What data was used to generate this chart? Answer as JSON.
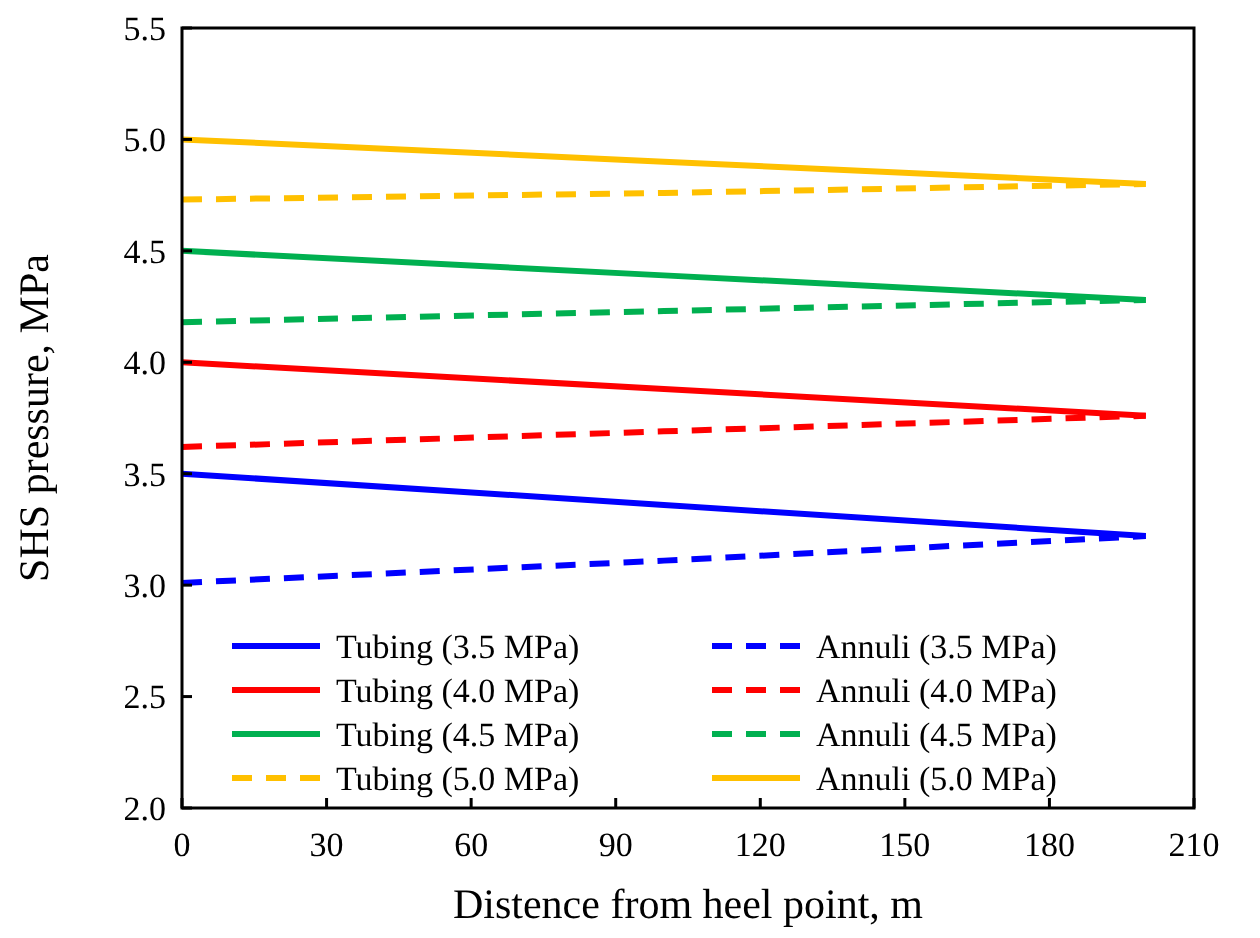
{
  "chart_data": {
    "type": "line",
    "xlabel": "Distence from heel point, m",
    "ylabel": "SHS pressure, MPa",
    "x": [
      0,
      100,
      200
    ],
    "xlim": [
      0,
      210
    ],
    "xticks": [
      0,
      30,
      60,
      90,
      120,
      150,
      180,
      210
    ],
    "ylim": [
      2.0,
      5.5
    ],
    "yticks": [
      {
        "value": 2.0,
        "label": "2.0"
      },
      {
        "value": 2.5,
        "label": "2.5"
      },
      {
        "value": 3.0,
        "label": "3.0"
      },
      {
        "value": 3.5,
        "label": "3.5"
      },
      {
        "value": 4.0,
        "label": "4.0"
      },
      {
        "value": 4.5,
        "label": "4.5"
      },
      {
        "value": 5.0,
        "label": "5.0"
      },
      {
        "value": 5.5,
        "label": "5.5"
      }
    ],
    "grid": false,
    "legend": "bottom",
    "marker": "none",
    "series": [
      {
        "name": "Tubing (3.5 MPa)",
        "color": "#0000ff",
        "line_style": "solid",
        "values": [
          3.5,
          3.36,
          3.22
        ]
      },
      {
        "name": "Tubing (4.0 MPa)",
        "color": "#ff0000",
        "line_style": "solid",
        "values": [
          4.0,
          3.88,
          3.76
        ]
      },
      {
        "name": "Tubing (4.5 MPa)",
        "color": "#00b050",
        "line_style": "solid",
        "values": [
          4.5,
          4.39,
          4.28
        ]
      },
      {
        "name": "Tubing (5.0 MPa)",
        "color": "#ffc000",
        "line_style": "dashed",
        "values": [
          4.73,
          4.76,
          4.8
        ]
      },
      {
        "name": "Annuli (3.5 MPa)",
        "color": "#0000ff",
        "line_style": "dashed",
        "values": [
          3.01,
          3.11,
          3.22
        ]
      },
      {
        "name": "Annuli (4.0 MPa)",
        "color": "#ff0000",
        "line_style": "dashed",
        "values": [
          3.62,
          3.69,
          3.76
        ]
      },
      {
        "name": "Annuli (4.5 MPa)",
        "color": "#00b050",
        "line_style": "dashed",
        "values": [
          4.18,
          4.23,
          4.28
        ]
      },
      {
        "name": "Annuli (5.0 MPa)",
        "color": "#ffc000",
        "line_style": "solid",
        "values": [
          5.0,
          4.9,
          4.8
        ]
      }
    ]
  }
}
